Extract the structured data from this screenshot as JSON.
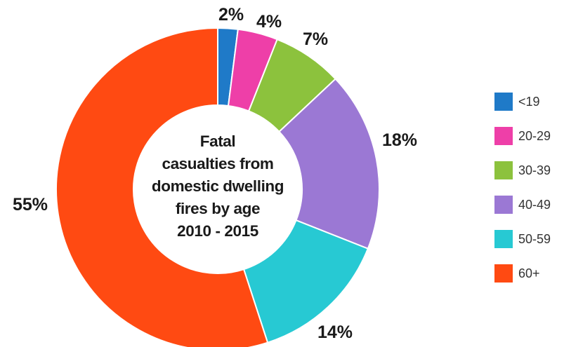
{
  "chart_data": {
    "type": "pie",
    "title_lines": [
      "Fatal",
      "casualties from",
      "domestic dwelling",
      "fires by age",
      "2010 - 2015"
    ],
    "categories": [
      "<19",
      "20-29",
      "30-39",
      "40-49",
      "50-59",
      "60+"
    ],
    "values": [
      2,
      4,
      7,
      18,
      14,
      55
    ],
    "value_labels": [
      "2%",
      "4%",
      "7%",
      "18%",
      "14%",
      "55%"
    ],
    "colors": [
      "#1f7ac8",
      "#ee3fa8",
      "#8cc23d",
      "#9b78d4",
      "#27c9d3",
      "#ff4a12"
    ],
    "legend_placement": "right",
    "donut": true
  }
}
